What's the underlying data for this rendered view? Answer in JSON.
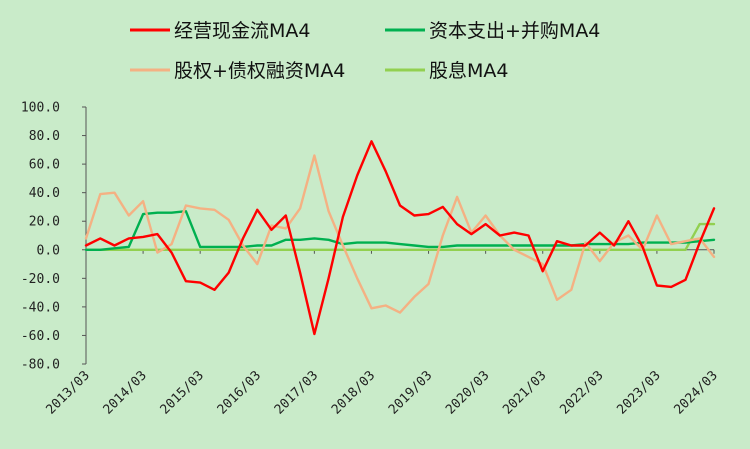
{
  "chart_data": {
    "type": "line",
    "title": "",
    "xlabel": "",
    "ylabel": "",
    "ylim": [
      -80,
      100
    ],
    "y_ticks": [
      "100.0",
      "80.0",
      "60.0",
      "40.0",
      "20.0",
      "0.0",
      "-20.0",
      "-40.0",
      "-60.0",
      "-80.0"
    ],
    "x_tick_labels": [
      "2013/03",
      "2014/03",
      "2015/03",
      "2016/03",
      "2017/03",
      "2018/03",
      "2019/03",
      "2020/03",
      "2021/03",
      "2022/03",
      "2023/03",
      "2024/03"
    ],
    "x": [
      "2013/03",
      "2013/06",
      "2013/09",
      "2013/12",
      "2014/03",
      "2014/06",
      "2014/09",
      "2014/12",
      "2015/03",
      "2015/06",
      "2015/09",
      "2015/12",
      "2016/03",
      "2016/06",
      "2016/09",
      "2016/12",
      "2017/03",
      "2017/06",
      "2017/09",
      "2017/12",
      "2018/03",
      "2018/06",
      "2018/09",
      "2018/12",
      "2019/03",
      "2019/06",
      "2019/09",
      "2019/12",
      "2020/03",
      "2020/06",
      "2020/09",
      "2020/12",
      "2021/03",
      "2021/06",
      "2021/09",
      "2021/12",
      "2022/03",
      "2022/06",
      "2022/09",
      "2022/12",
      "2023/03",
      "2023/06",
      "2023/09",
      "2023/12",
      "2024/03"
    ],
    "grid": false,
    "legend_placement": "top",
    "series": [
      {
        "name": "经营现金流MA4",
        "color": "#ff0000",
        "values": [
          3,
          8,
          3,
          8,
          9,
          11,
          -2,
          -22,
          -23,
          -28,
          -16,
          8,
          28,
          14,
          24,
          -16,
          -59,
          -20,
          23,
          52,
          76,
          55,
          31,
          24,
          25,
          30,
          18,
          11,
          18,
          10,
          12,
          10,
          -15,
          6,
          3,
          3,
          12,
          3,
          20,
          2,
          -25,
          -26,
          -21,
          5,
          29
        ]
      },
      {
        "name": "资本支出+并购MA4",
        "color": "#00b050",
        "values": [
          0,
          0,
          1,
          2,
          25,
          26,
          26,
          27,
          2,
          2,
          2,
          2,
          3,
          3,
          7,
          7,
          8,
          7,
          4,
          5,
          5,
          5,
          4,
          3,
          2,
          2,
          3,
          3,
          3,
          3,
          3,
          3,
          3,
          3,
          3,
          4,
          4,
          4,
          4,
          5,
          5,
          5,
          5,
          6,
          7
        ]
      },
      {
        "name": "股权+债权融资MA4",
        "color": "#f4b183",
        "values": [
          8,
          39,
          40,
          24,
          34,
          -2,
          4,
          31,
          29,
          28,
          21,
          3,
          -10,
          17,
          15,
          29,
          66,
          27,
          3,
          -20,
          -41,
          -39,
          -44,
          -33,
          -24,
          10,
          37,
          12,
          24,
          10,
          0,
          -5,
          -10,
          -35,
          -28,
          5,
          -8,
          5,
          10,
          0,
          24,
          4,
          6,
          8,
          -5
        ]
      },
      {
        "name": "股息MA4",
        "color": "#92d050",
        "values": [
          0,
          0,
          0,
          0,
          0,
          0,
          0,
          0,
          0,
          0,
          0,
          0,
          0,
          0,
          0,
          0,
          0,
          0,
          0,
          0,
          0,
          0,
          0,
          0,
          0,
          0,
          0,
          0,
          0,
          0,
          0,
          0,
          0,
          0,
          0,
          0,
          0,
          0,
          0,
          0,
          0,
          0,
          0,
          18,
          18
        ]
      }
    ]
  }
}
